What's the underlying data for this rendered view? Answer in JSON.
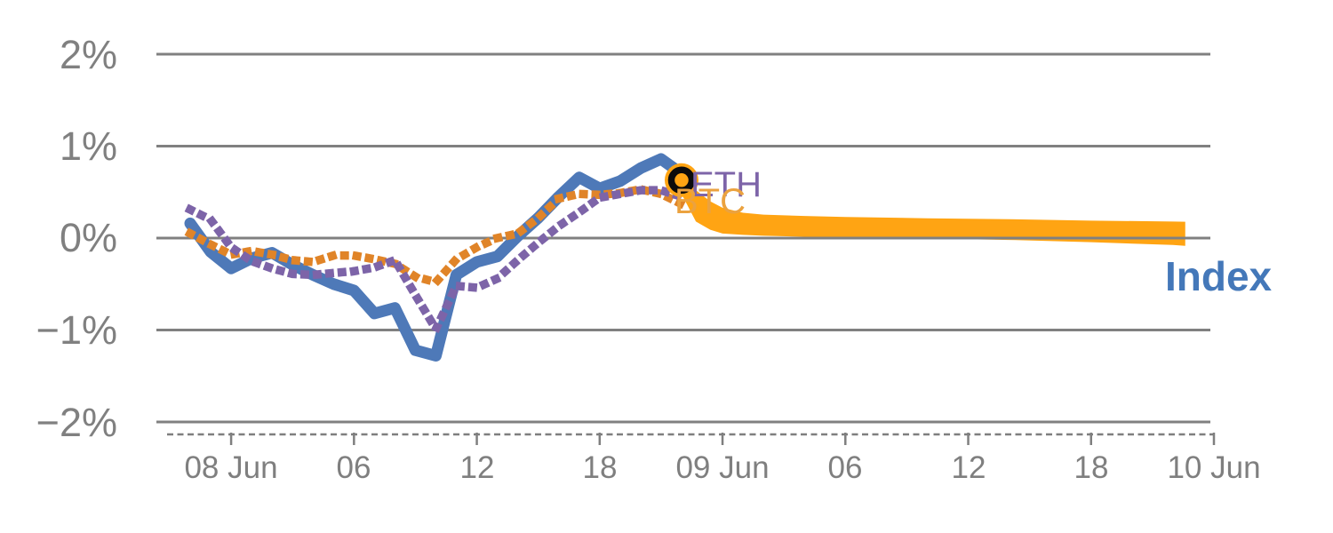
{
  "chart_data": {
    "type": "line",
    "title": "",
    "description": "Intraday percent-change comparison of ETH, BTC and a crypto Index from 07 Jun 22:00 to 08 Jun 22:00, with a highlighted marker at the last observation and an orange projection band extending to 10 Jun",
    "ylabel": "",
    "xlabel": "",
    "ylim": [
      -2,
      2
    ],
    "grid": "horizontal",
    "y_axis": {
      "labels": [
        "2%",
        "1%",
        "0%",
        "−1%",
        "−2%"
      ],
      "values": [
        2,
        1,
        0,
        -1,
        -2
      ]
    },
    "x_axis": {
      "labels": [
        "08 Jun",
        "06",
        "12",
        "18",
        "09 Jun",
        "06",
        "12",
        "18",
        "10 Jun"
      ],
      "tick_hours": [
        2,
        8,
        14,
        20,
        26,
        32,
        38,
        44,
        50
      ],
      "start": "07 Jun 22:00",
      "unit": "hours"
    },
    "x_hours": [
      0,
      1,
      2,
      3,
      4,
      5,
      6,
      7,
      8,
      9,
      10,
      11,
      12,
      13,
      14,
      15,
      16,
      17,
      18,
      19,
      20,
      21,
      22,
      23,
      24
    ],
    "series": [
      {
        "name": "Index",
        "style": "solid",
        "color": "#4E79B8",
        "values": [
          0.16,
          -0.15,
          -0.33,
          -0.22,
          -0.16,
          -0.29,
          -0.4,
          -0.5,
          -0.57,
          -0.82,
          -0.76,
          -1.22,
          -1.28,
          -0.4,
          -0.26,
          -0.2,
          0.02,
          0.22,
          0.45,
          0.66,
          0.54,
          0.62,
          0.76,
          0.86,
          0.7
        ]
      },
      {
        "name": "BTC",
        "style": "dotted",
        "color": "#E08428",
        "values": [
          0.05,
          -0.07,
          -0.18,
          -0.14,
          -0.18,
          -0.24,
          -0.26,
          -0.19,
          -0.19,
          -0.23,
          -0.28,
          -0.42,
          -0.48,
          -0.23,
          -0.1,
          0.0,
          0.05,
          0.22,
          0.43,
          0.48,
          0.47,
          0.49,
          0.53,
          0.48,
          0.37
        ]
      },
      {
        "name": "ETH",
        "style": "dotted",
        "color": "#7D64A8",
        "values": [
          0.31,
          0.2,
          -0.1,
          -0.25,
          -0.33,
          -0.39,
          -0.4,
          -0.38,
          -0.36,
          -0.32,
          -0.24,
          -0.62,
          -0.99,
          -0.52,
          -0.54,
          -0.44,
          -0.24,
          -0.05,
          0.13,
          0.28,
          0.44,
          0.48,
          0.52,
          0.52,
          0.45
        ]
      }
    ],
    "band": {
      "name": "projection-band",
      "color": "#FFA413",
      "x_hours": [
        24,
        24.7,
        25.4,
        26,
        27,
        28,
        30,
        32,
        36,
        40,
        44,
        48,
        48.6
      ],
      "top": [
        0.66,
        0.52,
        0.4,
        0.33,
        0.275,
        0.255,
        0.24,
        0.23,
        0.215,
        0.205,
        0.19,
        0.18,
        0.178
      ],
      "bottom": [
        0.48,
        0.18,
        0.09,
        0.05,
        0.035,
        0.025,
        0.015,
        0.01,
        -0.005,
        -0.02,
        -0.045,
        -0.075,
        -0.085
      ]
    },
    "marker": {
      "x_hour": 24,
      "value": 0.63,
      "outer_color": "#FFA413",
      "ring_color": "#0b0b0b"
    },
    "annotations": {
      "eth": "ETH",
      "btc": "BTC",
      "index": "Index"
    },
    "colors": {
      "gridline": "#808080",
      "axis_text": "#7f7f7f",
      "index_label": "#4478B9"
    }
  }
}
